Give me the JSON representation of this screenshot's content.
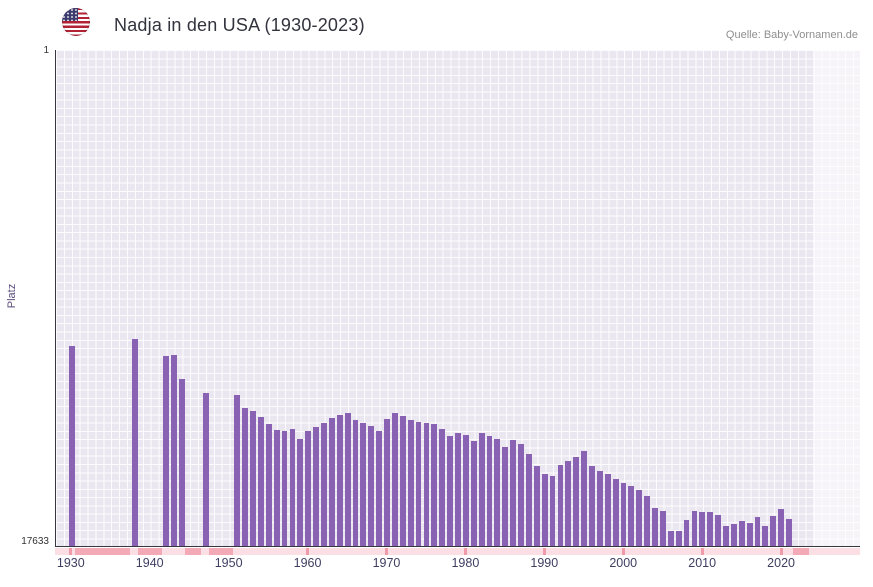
{
  "header": {
    "title": "Nadja in den USA (1930-2023)",
    "source": "Quelle: Baby-Vornamen.de",
    "flag": "us-flag"
  },
  "axes": {
    "y_title": "Platz",
    "y_max_label": "1",
    "y_min_label": "17633",
    "x_min": 1928,
    "x_max": 2030,
    "x_ticks": [
      1930,
      1940,
      1950,
      1960,
      1970,
      1980,
      1990,
      2000,
      2010,
      2020
    ]
  },
  "chart_data": {
    "type": "bar",
    "title": "Nadja in den USA (1930-2023)",
    "xlabel": "",
    "ylabel": "Platz",
    "y_scale": "log",
    "y_inverted": true,
    "ylim": [
      1,
      17633
    ],
    "x": [
      1930,
      1938,
      1942,
      1943,
      1944,
      1947,
      1951,
      1952,
      1953,
      1954,
      1955,
      1956,
      1957,
      1958,
      1959,
      1960,
      1961,
      1962,
      1963,
      1964,
      1965,
      1966,
      1967,
      1968,
      1969,
      1970,
      1971,
      1972,
      1973,
      1974,
      1975,
      1976,
      1977,
      1978,
      1979,
      1980,
      1981,
      1982,
      1983,
      1984,
      1985,
      1986,
      1987,
      1988,
      1989,
      1990,
      1991,
      1992,
      1993,
      1994,
      1995,
      1996,
      1997,
      1998,
      1999,
      2000,
      2001,
      2002,
      2003,
      2004,
      2005,
      2006,
      2007,
      2008,
      2009,
      2010,
      2011,
      2012,
      2013,
      2014,
      2015,
      2016,
      2017,
      2018,
      2019,
      2020,
      2021
    ],
    "values": [
      340,
      295,
      420,
      410,
      650,
      870,
      890,
      1150,
      1220,
      1390,
      1600,
      1800,
      1840,
      1770,
      2150,
      1840,
      1700,
      1570,
      1420,
      1320,
      1290,
      1480,
      1570,
      1660,
      1840,
      1450,
      1290,
      1370,
      1480,
      1540,
      1570,
      1600,
      1770,
      2030,
      1910,
      1990,
      2230,
      1910,
      2030,
      2150,
      2510,
      2190,
      2370,
      2880,
      3660,
      4280,
      4450,
      3580,
      3310,
      3060,
      2720,
      3660,
      4040,
      4280,
      4720,
      5110,
      5420,
      5860,
      6590,
      8360,
      8850,
      13100,
      13100,
      10570,
      8850,
      9040,
      9040,
      9580,
      11900,
      11430,
      10790,
      11220,
      9980,
      11900,
      9770,
      8510,
      10380
    ],
    "missing_ranges": [
      [
        1931,
        1937
      ],
      [
        1939,
        1941
      ],
      [
        1945,
        1946
      ],
      [
        1948,
        1950
      ],
      [
        2022,
        2023
      ]
    ],
    "shaded_region": [
      2024,
      2030
    ]
  },
  "colors": {
    "bar_color": "#8a62b4",
    "plot_bg": "#ebe7f1",
    "band": "rgba(255,255,255,0.55)",
    "strip_bg": "#fbdfe4",
    "strip_missing": "#f4a9b6",
    "strip_tick": "#f19aa9",
    "title_color": "#32333d",
    "source_color": "#8f8f8f",
    "tick_color": "#3e3e63",
    "ylabel_color": "#5a4a7a"
  }
}
